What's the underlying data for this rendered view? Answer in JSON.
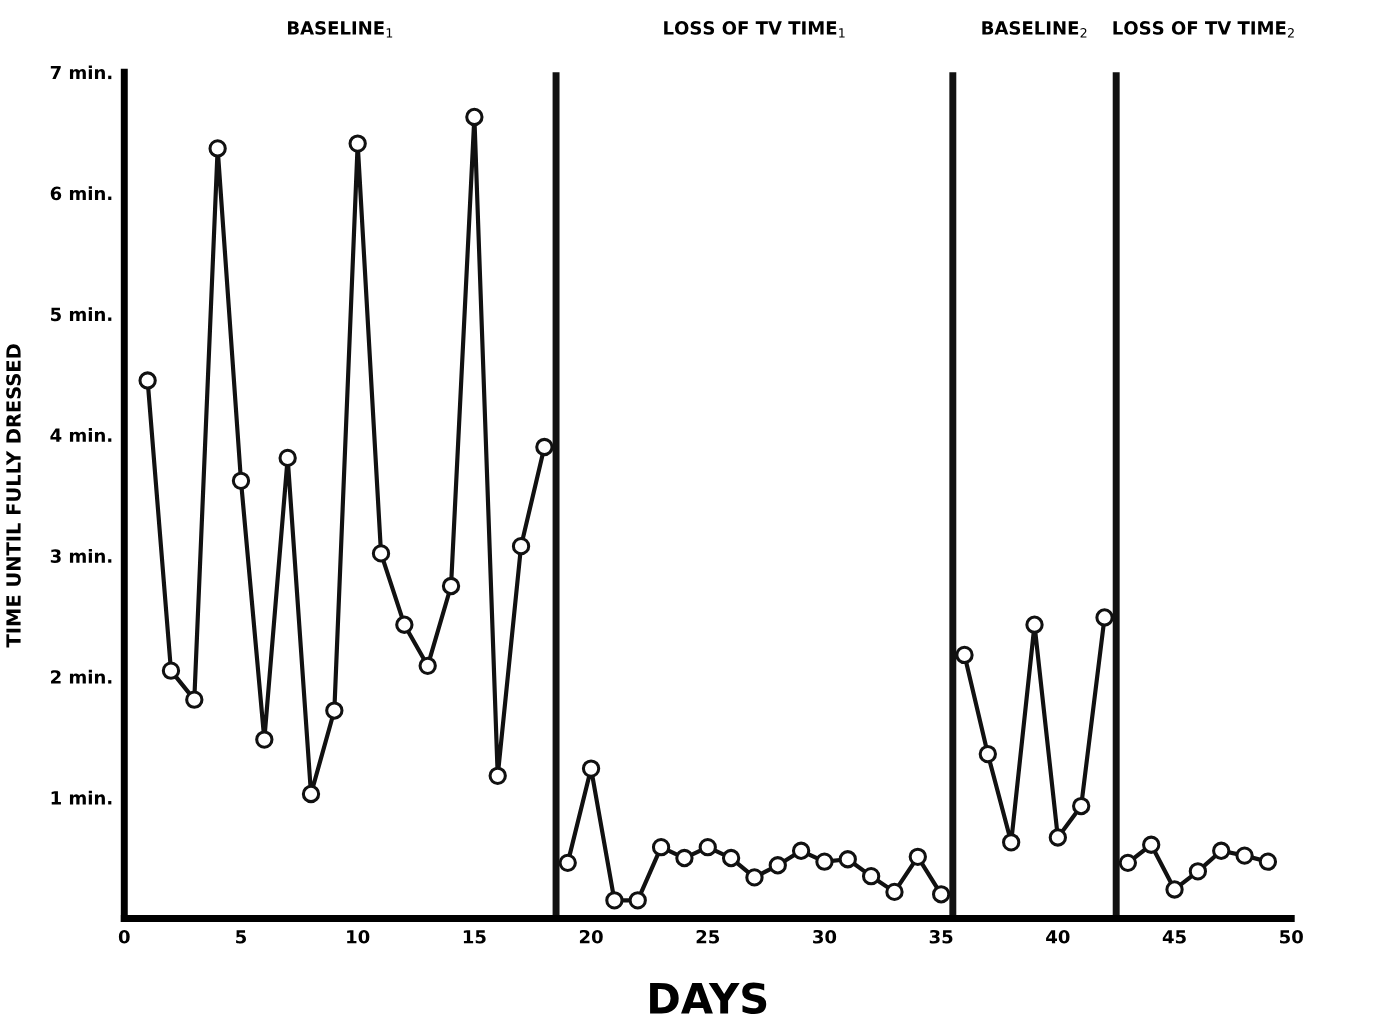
{
  "chart_data": {
    "type": "line",
    "xlabel": "DAYS",
    "ylabel": "TIME UNTIL FULLY DRESSED",
    "annotations": [
      "BASELINE$_{1}$",
      "LOSS OF TV TIME$_{1}$",
      "BASELINE$_{2}$",
      "LOSS OF TV TIME$_{2}$"
    ],
    "series": [
      {
        "color": "#111111",
        "x": [
          1,
          2,
          3,
          4,
          5,
          6,
          7,
          8,
          9,
          10,
          11,
          12,
          13,
          14,
          15,
          16,
          17,
          18
        ],
        "values": [
          4.45,
          2.05,
          1.81,
          6.37,
          3.62,
          1.48,
          3.81,
          1.03,
          1.72,
          6.41,
          3.02,
          2.43,
          2.09,
          2.75,
          6.63,
          1.18,
          3.08,
          3.9
        ]
      },
      {
        "color": "#111111",
        "x": [
          19,
          20,
          21,
          22,
          23,
          24,
          25,
          26,
          27,
          28,
          29,
          30,
          31,
          32,
          33,
          34,
          35
        ],
        "values": [
          0.46,
          1.24,
          0.15,
          0.15,
          0.59,
          0.5,
          0.59,
          0.5,
          0.34,
          0.44,
          0.56,
          0.47,
          0.49,
          0.35,
          0.22,
          0.51,
          0.2
        ]
      },
      {
        "color": "#111111",
        "x": [
          36,
          37,
          38,
          39,
          40,
          41,
          42
        ],
        "values": [
          2.18,
          1.36,
          0.63,
          2.43,
          0.67,
          0.93,
          2.49
        ]
      },
      {
        "color": "#111111",
        "x": [
          43,
          44,
          45,
          46,
          47,
          48,
          49
        ],
        "values": [
          0.46,
          0.61,
          0.24,
          0.39,
          0.56,
          0.52,
          0.47
        ]
      }
    ],
    "xlim": [
      0,
      50
    ],
    "xticks": [
      0,
      5,
      10,
      15,
      20,
      25,
      30,
      35,
      40,
      45,
      50
    ],
    "ylim": [
      0,
      7
    ],
    "yticks": [
      {
        "value": 1,
        "label": "1 min."
      },
      {
        "value": 2,
        "label": "2 min."
      },
      {
        "value": 3,
        "label": "3 min."
      },
      {
        "value": 4,
        "label": "4 min."
      },
      {
        "value": 5,
        "label": "5 min."
      },
      {
        "value": 6,
        "label": "6 min."
      },
      {
        "value": 7,
        "label": "7 min."
      }
    ],
    "ref_lines": [
      {
        "axis": "x",
        "value": 18.5,
        "color": "#111111"
      },
      {
        "axis": "x",
        "value": 35.5,
        "color": "#111111"
      },
      {
        "axis": "x",
        "value": 42.5,
        "color": "#111111"
      }
    ],
    "grid": false,
    "legend": false,
    "marker": "circle",
    "line_style": "solid"
  }
}
